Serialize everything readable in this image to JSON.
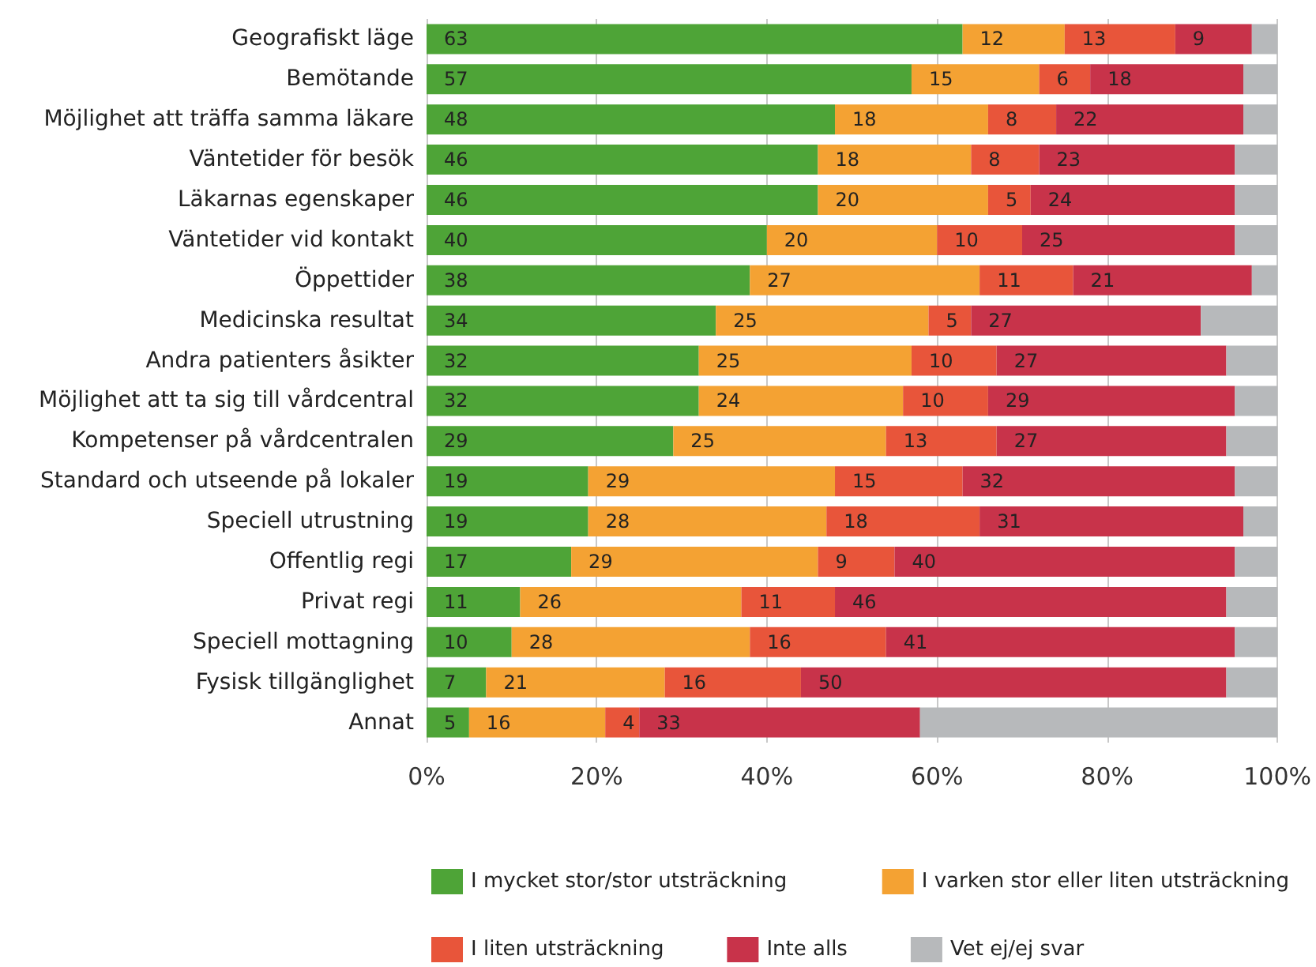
{
  "chart_data": {
    "type": "bar",
    "orientation": "horizontal",
    "stacked": true,
    "categories": [
      "Geografiskt läge",
      "Bemötande",
      "Möjlighet att träffa samma läkare",
      "Väntetider för besök",
      "Läkarnas egenskaper",
      "Väntetider vid kontakt",
      "Öppettider",
      "Medicinska resultat",
      "Andra patienters åsikter",
      "Möjlighet att ta sig till vårdcentral",
      "Kompetenser på vårdcentralen",
      "Standard och utseende på lokaler",
      "Speciell utrustning",
      "Offentlig regi",
      "Privat regi",
      "Speciell mottagning",
      "Fysisk tillgänglighet",
      "Annat"
    ],
    "series": [
      {
        "name": "I mycket stor/stor utsträckning",
        "color": "#4ea437",
        "values": [
          63,
          57,
          48,
          46,
          46,
          40,
          38,
          34,
          32,
          32,
          29,
          19,
          19,
          17,
          11,
          10,
          7,
          5
        ],
        "value_labels": [
          "63",
          "57",
          "48",
          "46",
          "46",
          "40",
          "38",
          "34",
          "32",
          "32",
          "29",
          "19",
          "19",
          "17",
          "11",
          "10",
          "7",
          "5"
        ]
      },
      {
        "name": "I varken stor eller liten utsträckning",
        "color": "#f4a233",
        "values": [
          12,
          15,
          18,
          18,
          20,
          20,
          27,
          25,
          25,
          24,
          25,
          29,
          28,
          29,
          26,
          28,
          21,
          16
        ],
        "value_labels": [
          "12",
          "15",
          "18",
          "18",
          "20",
          "20",
          "27",
          "25",
          "25",
          "24",
          "25",
          "29",
          "28",
          "29",
          "26",
          "28",
          "21",
          "16"
        ]
      },
      {
        "name": "I liten utsträckning",
        "color": "#e8553a",
        "values": [
          13,
          6,
          8,
          8,
          5,
          10,
          11,
          5,
          10,
          10,
          13,
          15,
          18,
          9,
          11,
          16,
          16,
          4
        ],
        "value_labels": [
          "13",
          "6",
          "8",
          "8",
          "5",
          "10",
          "11",
          "5",
          "10",
          "10",
          "13",
          "15",
          "18",
          "9",
          "11",
          "16",
          "16",
          "4"
        ]
      },
      {
        "name": "Inte alls",
        "color": "#c8334a",
        "values": [
          9,
          18,
          22,
          23,
          24,
          25,
          21,
          27,
          27,
          29,
          27,
          32,
          31,
          40,
          46,
          41,
          50,
          33
        ],
        "value_labels": [
          "9",
          "18",
          "22",
          "23",
          "24",
          "25",
          "21",
          "27",
          "27",
          "29",
          "27",
          "32",
          "31",
          "40",
          "46",
          "41",
          "50",
          "33"
        ]
      },
      {
        "name": "Vet ej/ej svar",
        "color": "#b7b9bb",
        "values": [
          3,
          4,
          4,
          5,
          5,
          5,
          3,
          9,
          6,
          5,
          6,
          5,
          4,
          5,
          6,
          5,
          6,
          42
        ]
      }
    ],
    "xlim": [
      0,
      100
    ],
    "xticks": [
      {
        "value": 0,
        "label": "0%"
      },
      {
        "value": 20,
        "label": "20%"
      },
      {
        "value": 40,
        "label": "40%"
      },
      {
        "value": 60,
        "label": "60%"
      },
      {
        "value": 80,
        "label": "80%"
      },
      {
        "value": 100,
        "label": "100%"
      }
    ],
    "grid": "x",
    "legend": "bottom"
  }
}
